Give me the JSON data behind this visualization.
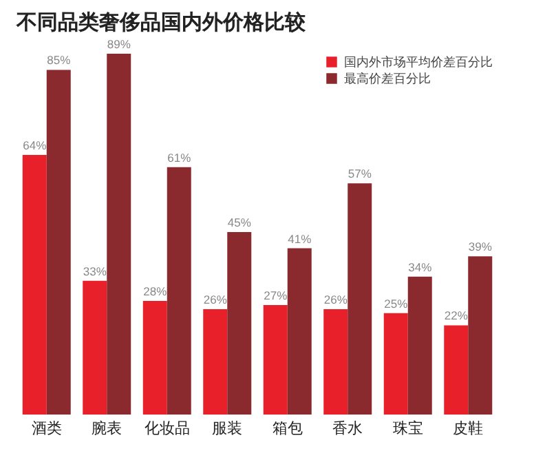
{
  "chart_data": {
    "type": "bar",
    "title": "不同品类奢侈品国内外价格比较",
    "categories": [
      "酒类",
      "腕表",
      "化妆品",
      "服装",
      "箱包",
      "香水",
      "珠宝",
      "皮鞋"
    ],
    "series": [
      {
        "name": "国内外市场平均价差百分比",
        "color": "#e8202a",
        "values": [
          64,
          33,
          28,
          26,
          27,
          26,
          25,
          22
        ],
        "value_labels": [
          "64%",
          "33%",
          "28%",
          "26%",
          "27%",
          "26%",
          "25%",
          "22%"
        ]
      },
      {
        "name": "最高价差百分比",
        "color": "#8b2a2e",
        "values": [
          85,
          89,
          61,
          45,
          41,
          57,
          34,
          39
        ],
        "value_labels": [
          "85%",
          "89%",
          "61%",
          "45%",
          "41%",
          "57%",
          "34%",
          "39%"
        ]
      }
    ],
    "tick_labels": "x",
    "legend": "top right"
  }
}
